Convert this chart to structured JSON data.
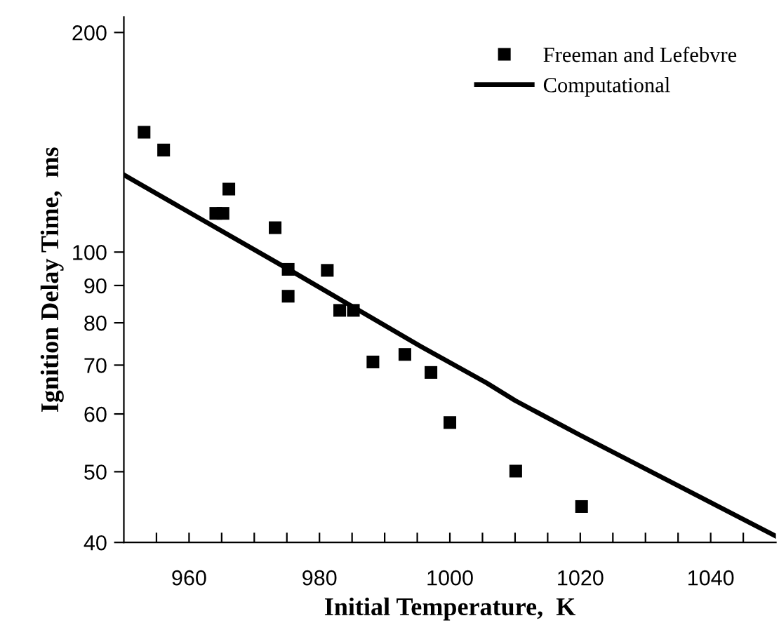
{
  "chart_data": {
    "type": "scatter",
    "xlabel": "Initial Temperature,  K",
    "ylabel": "Ignition Delay Time,  ms",
    "xlim": [
      950,
      1050
    ],
    "ylim": [
      40,
      210
    ],
    "log": "y",
    "xticks": [
      {
        "value": 955,
        "label": null
      },
      960,
      {
        "value": 965,
        "label": null
      },
      {
        "value": 970,
        "label": null
      },
      {
        "value": 975,
        "label": null
      },
      980,
      {
        "value": 985,
        "label": null
      },
      {
        "value": 990,
        "label": null
      },
      {
        "value": 995,
        "label": null
      },
      1000,
      {
        "value": 1005,
        "label": null
      },
      {
        "value": 1010,
        "label": null
      },
      {
        "value": 1015,
        "label": null
      },
      1020,
      {
        "value": 1025,
        "label": null
      },
      {
        "value": 1030,
        "label": null
      },
      {
        "value": 1035,
        "label": null
      },
      1040,
      {
        "value": 1045,
        "label": null
      }
    ],
    "yticks": [
      40,
      50,
      60,
      70,
      80,
      90,
      100,
      200
    ],
    "grid": false,
    "legend": "top right",
    "series": [
      {
        "name": "Freeman and Lefebvre",
        "marker": "square",
        "color": "#000000",
        "x": [
          953.1,
          956.1,
          966.1,
          964.1,
          965.2,
          973.2,
          975.2,
          975.2,
          981.2,
          983.1,
          985.2,
          988.2,
          993.1,
          997.1,
          1000.0,
          1010.1,
          1020.2
        ],
        "values": [
          146,
          138,
          122,
          113,
          113,
          108,
          94.7,
          87.0,
          94.4,
          83.2,
          83.2,
          70.7,
          72.4,
          68.4,
          58.4,
          50.1,
          44.8
        ]
      },
      {
        "name": "Computational",
        "type": "line",
        "marker": "none",
        "line_style": "solid",
        "color": "#000000",
        "x": [
          950,
          975,
          995.6,
          1005.6,
          1010,
          1020,
          1050
        ],
        "values": [
          127.6,
          95,
          74.2,
          66.2,
          62.6,
          56.1,
          40.8
        ]
      }
    ]
  }
}
